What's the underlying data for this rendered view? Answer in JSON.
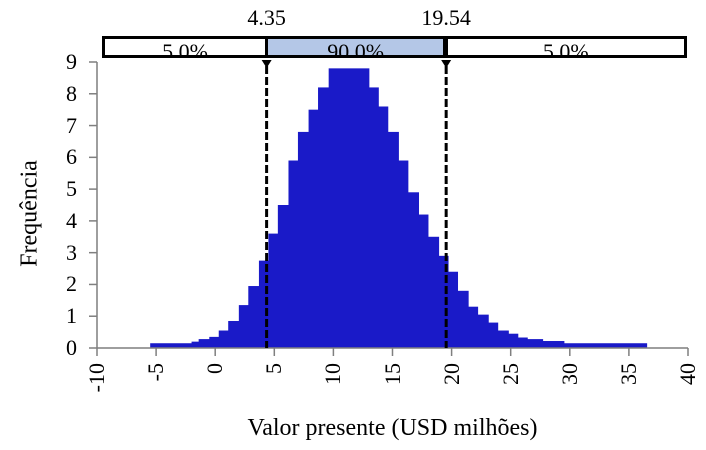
{
  "chart_data": {
    "type": "bar",
    "subtype": "histogram",
    "xlabel": "Valor presente (USD milhões)",
    "ylabel": "Frequência",
    "xlim": [
      -10,
      40
    ],
    "ylim": [
      0,
      9
    ],
    "xticks": [
      "-10",
      "-5",
      "0",
      "5",
      "10",
      "15",
      "20",
      "25",
      "30",
      "35",
      "40"
    ],
    "yticks": [
      "0",
      "1",
      "2",
      "3",
      "4",
      "5",
      "6",
      "7",
      "8",
      "9"
    ],
    "grid": false,
    "bar_color": "#1a1ac8",
    "bins": [
      {
        "x0": -5.5,
        "x1": -2.0,
        "y": 0.15
      },
      {
        "x0": -2.0,
        "x1": -1.4,
        "y": 0.2
      },
      {
        "x0": -1.4,
        "x1": -0.5,
        "y": 0.28
      },
      {
        "x0": -0.5,
        "x1": 0.3,
        "y": 0.35
      },
      {
        "x0": 0.3,
        "x1": 1.1,
        "y": 0.55
      },
      {
        "x0": 1.1,
        "x1": 2.0,
        "y": 0.85
      },
      {
        "x0": 2.0,
        "x1": 2.8,
        "y": 1.35
      },
      {
        "x0": 2.8,
        "x1": 3.7,
        "y": 1.95
      },
      {
        "x0": 3.7,
        "x1": 4.5,
        "y": 2.75
      },
      {
        "x0": 4.5,
        "x1": 5.3,
        "y": 3.6
      },
      {
        "x0": 5.3,
        "x1": 6.2,
        "y": 4.5
      },
      {
        "x0": 6.2,
        "x1": 7.0,
        "y": 5.9
      },
      {
        "x0": 7.0,
        "x1": 7.9,
        "y": 6.8
      },
      {
        "x0": 7.9,
        "x1": 8.7,
        "y": 7.5
      },
      {
        "x0": 8.7,
        "x1": 9.6,
        "y": 8.2
      },
      {
        "x0": 9.6,
        "x1": 13.0,
        "y": 8.8
      },
      {
        "x0": 13.0,
        "x1": 13.8,
        "y": 8.2
      },
      {
        "x0": 13.8,
        "x1": 14.6,
        "y": 7.6
      },
      {
        "x0": 14.6,
        "x1": 15.5,
        "y": 6.8
      },
      {
        "x0": 15.5,
        "x1": 16.3,
        "y": 5.9
      },
      {
        "x0": 16.3,
        "x1": 17.2,
        "y": 4.9
      },
      {
        "x0": 17.2,
        "x1": 18.0,
        "y": 4.2
      },
      {
        "x0": 18.0,
        "x1": 18.9,
        "y": 3.5
      },
      {
        "x0": 18.9,
        "x1": 19.7,
        "y": 2.9
      },
      {
        "x0": 19.7,
        "x1": 20.5,
        "y": 2.4
      },
      {
        "x0": 20.5,
        "x1": 21.4,
        "y": 1.8
      },
      {
        "x0": 21.4,
        "x1": 22.2,
        "y": 1.3
      },
      {
        "x0": 22.2,
        "x1": 23.1,
        "y": 1.05
      },
      {
        "x0": 23.1,
        "x1": 23.9,
        "y": 0.8
      },
      {
        "x0": 23.9,
        "x1": 24.8,
        "y": 0.55
      },
      {
        "x0": 24.8,
        "x1": 25.6,
        "y": 0.45
      },
      {
        "x0": 25.6,
        "x1": 26.4,
        "y": 0.33
      },
      {
        "x0": 26.4,
        "x1": 27.7,
        "y": 0.28
      },
      {
        "x0": 27.7,
        "x1": 29.5,
        "y": 0.22
      },
      {
        "x0": 29.5,
        "x1": 36.5,
        "y": 0.15
      }
    ],
    "markers": [
      {
        "x": 4.35,
        "label": "4.35"
      },
      {
        "x": 19.54,
        "label": "19.54"
      }
    ],
    "percentile_bands": [
      {
        "label": "5.0%",
        "from": -10,
        "to": 4.35,
        "fill": "#ffffff"
      },
      {
        "label": "90.0%",
        "from": 4.35,
        "to": 19.54,
        "fill": "#b4c7e7"
      },
      {
        "label": "5.0%",
        "from": 19.54,
        "to": 40,
        "fill": "#ffffff"
      }
    ]
  }
}
